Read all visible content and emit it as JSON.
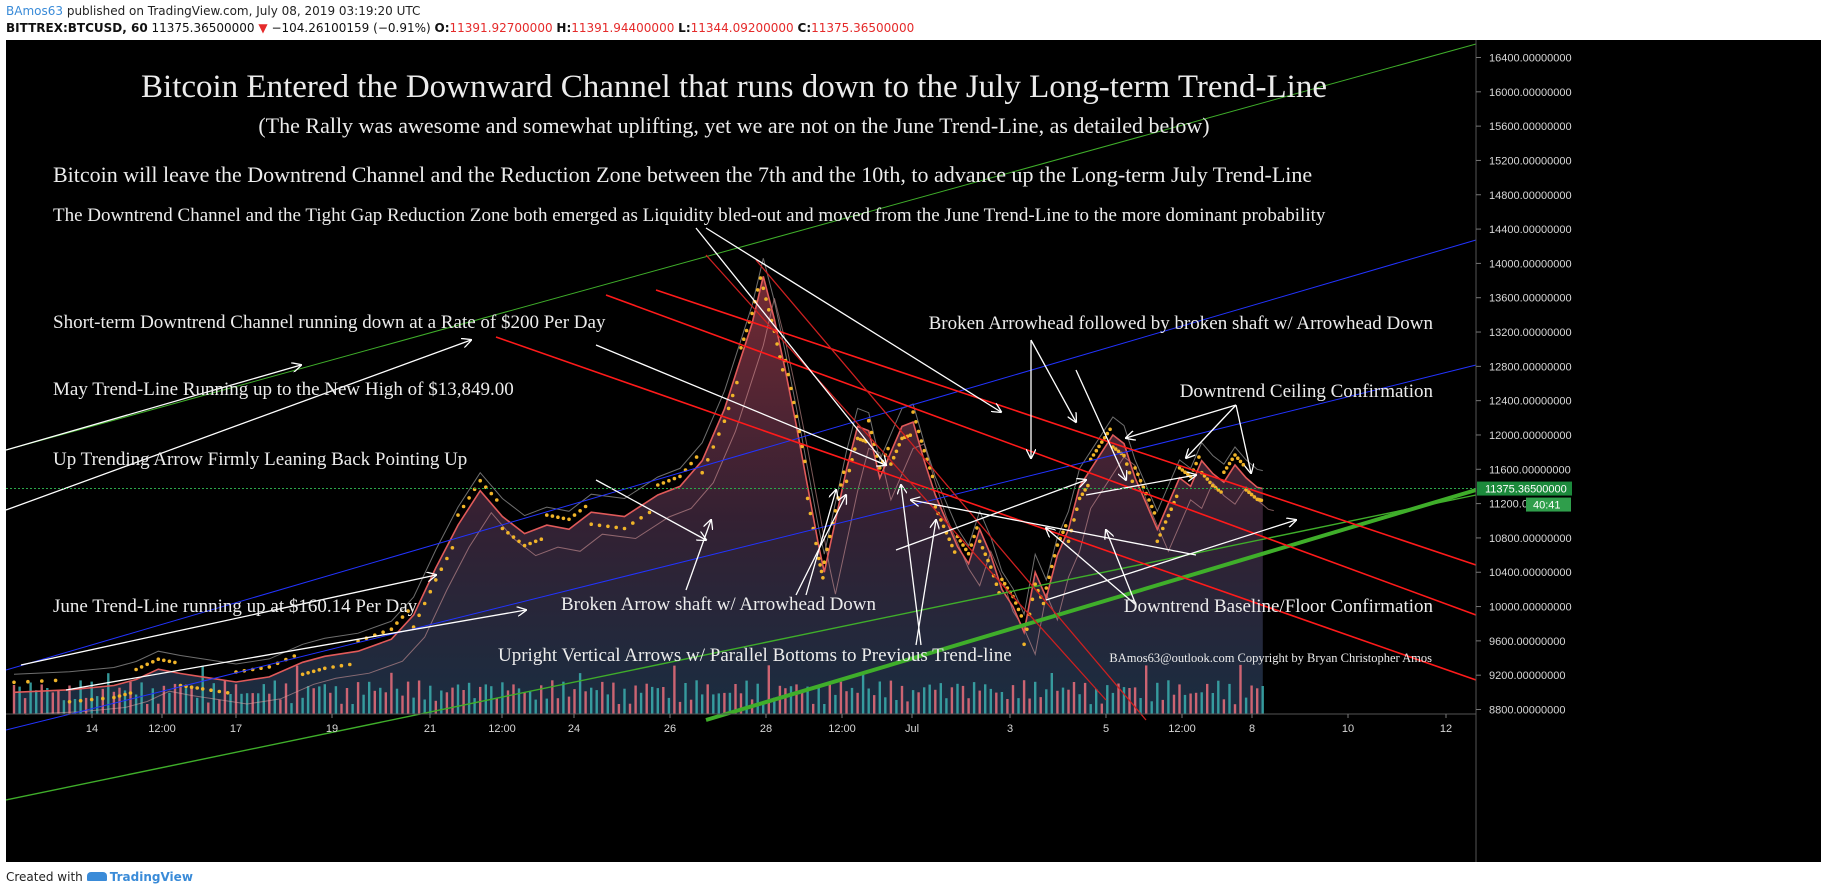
{
  "header": {
    "author": "BAmos63",
    "published_text": "published on TradingView.com, July 08, 2019 03:19:20 UTC",
    "symbol": "BITTREX:BTCUSD, 60",
    "last": "11375.36500000",
    "change": "−104.26100159 (−0.91%)",
    "open_label": "O:",
    "open": "11391.92700000",
    "high_label": "H:",
    "high": "11391.94400000",
    "low_label": "L:",
    "low": "11344.09200000",
    "close_label": "C:",
    "close": "11375.36500000"
  },
  "footer": {
    "created_with": "Created with",
    "brand": "TradingView"
  },
  "colors": {
    "background": "#000000",
    "candle_up": "#e05a5a",
    "area_fill": "#5a2a35",
    "volume_up": "#3aa7a8",
    "volume_down": "#e06a78",
    "dots": "#f0b429",
    "channel_red": "#ff1a1a",
    "trend_blue": "#2233ff",
    "trend_green": "#3fae2a",
    "annotation": "#ffffff",
    "price_label": "#1c8a3c",
    "time_label": "#2f9e4b"
  },
  "annotations": {
    "title": "Bitcoin Entered the Downward Channel that runs down to the July Long-term Trend-Line",
    "subtitle": "(The Rally was awesome and somewhat uplifting, yet we are not on the June Trend-Line, as detailed below)",
    "line3": "Bitcoin will leave the Downtrend Channel and the Reduction Zone between the 7th and the 10th, to advance up the Long-term July Trend-Line",
    "line4": "The Downtrend Channel and the Tight Gap Reduction Zone both emerged as Liquidity bled-out and moved from the June Trend-Line to the more dominant probability",
    "short_term": "Short-term Downtrend Channel running down at a Rate of $200 Per Day",
    "may_trend": "May Trend-Line Running up to the New High of $13,849.00",
    "up_trending": "Up Trending Arrow Firmly Leaning Back Pointing Up",
    "june_trend": "June Trend-Line running up at $160.14 Per Day",
    "broken_shaft": "Broken Arrow shaft w/ Arrowhead Down",
    "upright": "Upright Vertical Arrows w/ Parallel Bottoms to Previous Trend-line",
    "broken_arrowhead": "Broken Arrowhead followed by broken shaft w/ Arrowhead Down",
    "ceiling": "Downtrend Ceiling Confirmation",
    "baseline": "Downtrend Baseline/Floor Confirmation",
    "copyright": "BAmos63@outlook.com Copyright by Bryan Christopher Amos"
  },
  "chart_data": {
    "type": "line",
    "symbol": "BITTREX:BTCUSD",
    "interval": "60",
    "x_ticks": [
      "14",
      "12:00",
      "17",
      "19",
      "21",
      "12:00",
      "24",
      "26",
      "28",
      "12:00",
      "Jul",
      "3",
      "5",
      "12:00",
      "8",
      "10",
      "12"
    ],
    "y_ticks": [
      16400,
      16000,
      15600,
      15200,
      14800,
      14400,
      14000,
      13600,
      13200,
      12800,
      12400,
      12000,
      11600,
      11200,
      10800,
      10400,
      10000,
      9600,
      9200,
      8800
    ],
    "ylim": [
      8800,
      16400
    ],
    "last_price": 11375.365,
    "last_price_label": "11375.36500000",
    "countdown": "40:41",
    "series": [
      {
        "values": [
          [
            0,
            9000
          ],
          [
            10,
            9030
          ],
          [
            18,
            9080
          ],
          [
            22,
            9150
          ],
          [
            26,
            9270
          ],
          [
            30,
            9220
          ],
          [
            34,
            9180
          ],
          [
            40,
            9120
          ],
          [
            46,
            9180
          ],
          [
            52,
            9350
          ],
          [
            56,
            9420
          ],
          [
            62,
            9480
          ],
          [
            68,
            9620
          ],
          [
            72,
            9900
          ],
          [
            76,
            10450
          ],
          [
            80,
            10950
          ],
          [
            84,
            11350
          ],
          [
            88,
            11050
          ],
          [
            92,
            10850
          ],
          [
            96,
            10950
          ],
          [
            100,
            10900
          ],
          [
            104,
            11100
          ],
          [
            110,
            11050
          ],
          [
            116,
            11300
          ],
          [
            120,
            11400
          ],
          [
            124,
            11700
          ],
          [
            128,
            12300
          ],
          [
            131,
            12900
          ],
          [
            133,
            13300
          ],
          [
            135,
            13849
          ],
          [
            137,
            13350
          ],
          [
            139,
            12750
          ],
          [
            141,
            12100
          ],
          [
            143,
            11400
          ],
          [
            145,
            10700
          ],
          [
            146,
            10400
          ],
          [
            148,
            11000
          ],
          [
            150,
            11600
          ],
          [
            152,
            12100
          ],
          [
            154,
            12050
          ],
          [
            156,
            11500
          ],
          [
            158,
            11800
          ],
          [
            160,
            12100
          ],
          [
            162,
            12150
          ],
          [
            164,
            11700
          ],
          [
            166,
            11300
          ],
          [
            168,
            11000
          ],
          [
            170,
            10700
          ],
          [
            172,
            10500
          ],
          [
            174,
            10900
          ],
          [
            176,
            10600
          ],
          [
            178,
            10200
          ],
          [
            180,
            10000
          ],
          [
            182,
            9700
          ],
          [
            184,
            10400
          ],
          [
            186,
            10100
          ],
          [
            188,
            10600
          ],
          [
            190,
            10900
          ],
          [
            192,
            11400
          ],
          [
            194,
            11600
          ],
          [
            196,
            11800
          ],
          [
            198,
            12000
          ],
          [
            200,
            11900
          ],
          [
            202,
            11500
          ],
          [
            204,
            11200
          ],
          [
            206,
            10900
          ],
          [
            208,
            11200
          ],
          [
            210,
            11500
          ],
          [
            212,
            11400
          ],
          [
            214,
            11700
          ],
          [
            216,
            11550
          ],
          [
            218,
            11450
          ],
          [
            220,
            11650
          ],
          [
            222,
            11500
          ],
          [
            224,
            11390
          ],
          [
            225,
            11375
          ]
        ]
      }
    ]
  }
}
